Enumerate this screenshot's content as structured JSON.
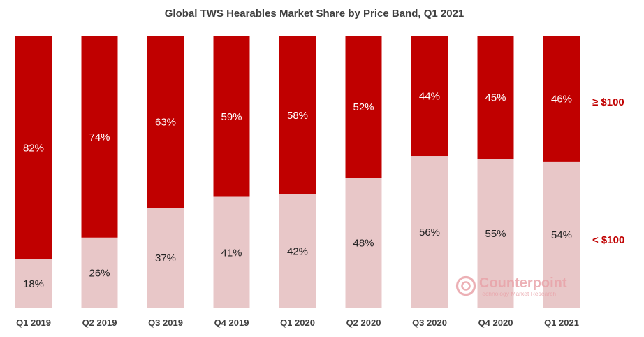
{
  "chart_data": {
    "type": "bar",
    "stacked": true,
    "percent_stacked": true,
    "title": "Global TWS Hearables Market Share by Price Band, Q1 2021",
    "categories": [
      "Q1 2019",
      "Q2 2019",
      "Q3 2019",
      "Q4 2019",
      "Q1 2020",
      "Q2 2020",
      "Q3 2020",
      "Q4 2020",
      "Q1 2021"
    ],
    "series": [
      {
        "name": "< $100",
        "values": [
          18,
          26,
          37,
          41,
          42,
          48,
          56,
          55,
          54
        ],
        "labels": [
          "18%",
          "26%",
          "37%",
          "41%",
          "42%",
          "48%",
          "56%",
          "55%",
          "54%"
        ],
        "color": "#e8c7c8"
      },
      {
        "name": "≥ $100",
        "values": [
          82,
          74,
          63,
          59,
          58,
          52,
          44,
          45,
          46
        ],
        "labels": [
          "82%",
          "74%",
          "63%",
          "59%",
          "58%",
          "52%",
          "44%",
          "45%",
          "46%"
        ],
        "color": "#c00000"
      }
    ],
    "ylim": [
      0,
      100
    ],
    "grid": false,
    "legend_placement": "right"
  },
  "watermark": {
    "brand": "Counterpoint",
    "tagline": "Technology Market Research",
    "color": "#e9a3a9"
  }
}
